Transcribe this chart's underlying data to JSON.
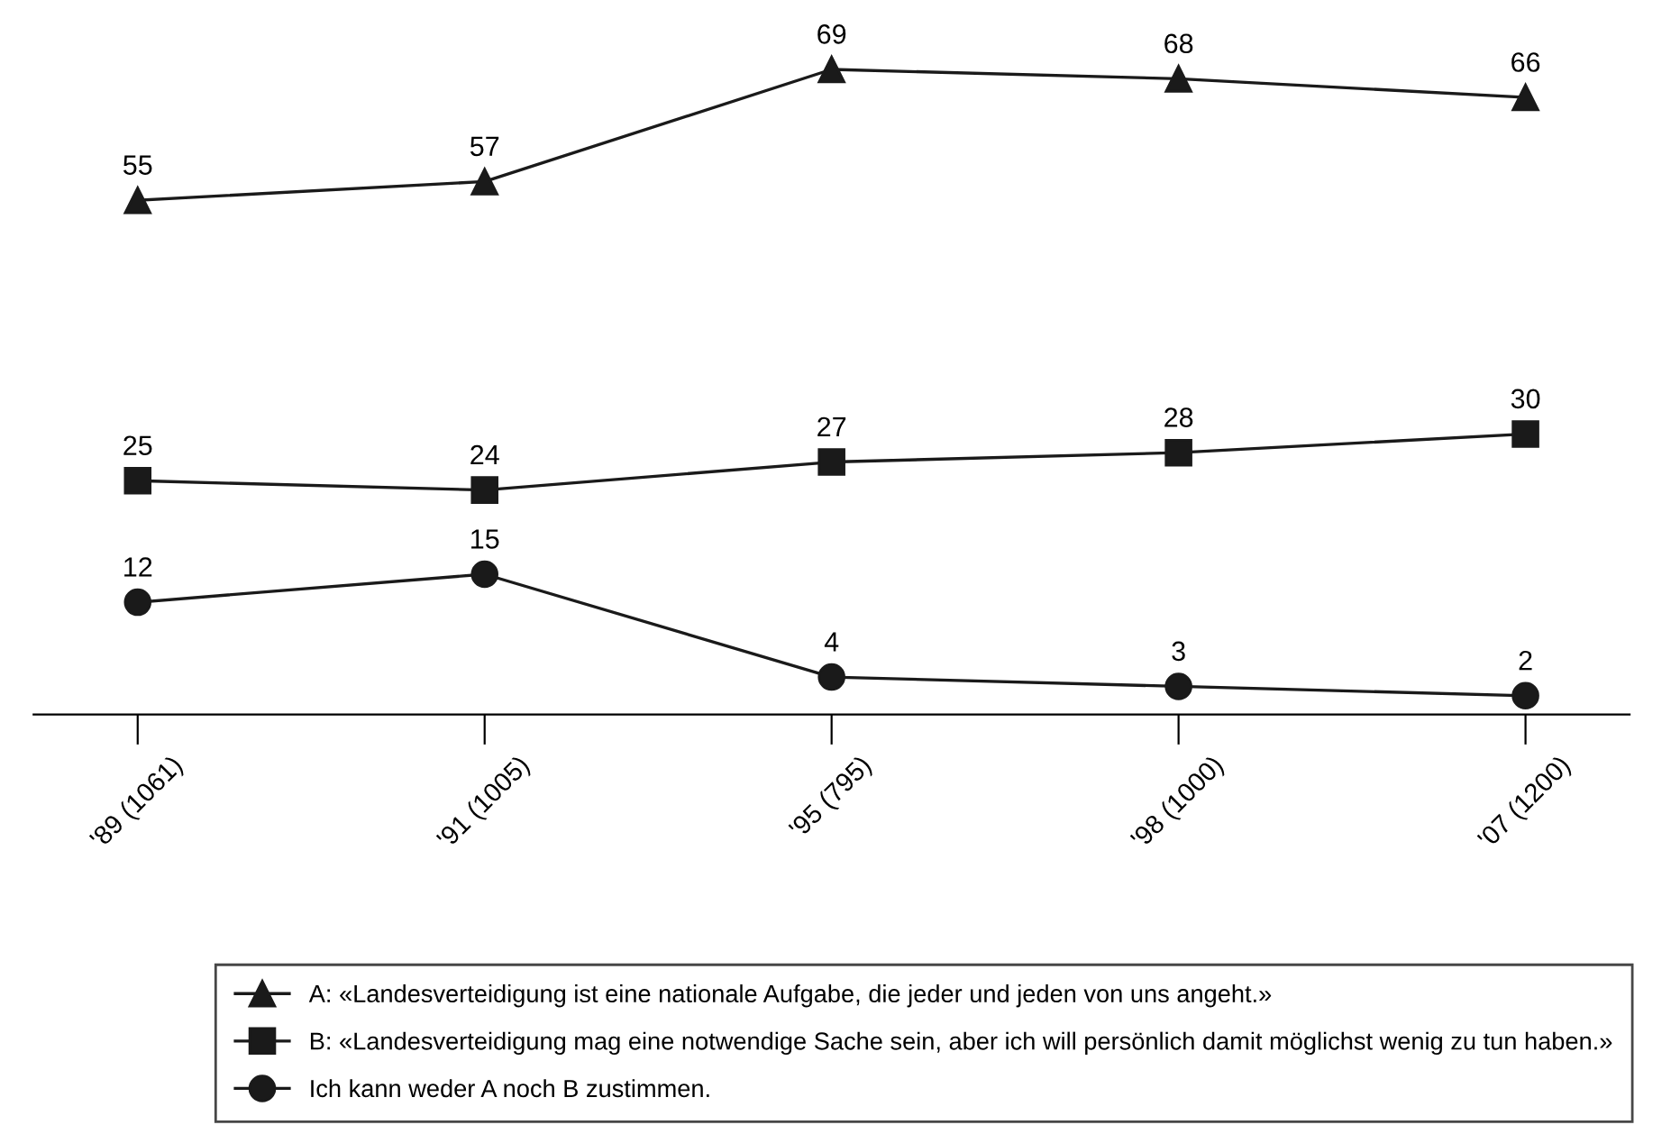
{
  "chart_data": {
    "type": "line",
    "categories": [
      "'89 (1061)",
      "'91 (1005)",
      "'95 (795)",
      "'98 (1000)",
      "'07 (1200)"
    ],
    "series": [
      {
        "name": "A: «Landesverteidigung ist eine nationale Aufgabe, die jeder und jeden von uns angeht.»",
        "color": "#1a1a1a",
        "marker": "triangle",
        "values": [
          55,
          57,
          69,
          68,
          66
        ]
      },
      {
        "name": "B: «Landesverteidigung mag eine notwendige Sache sein, aber ich will persönlich damit möglichst wenig zu tun haben.»",
        "color": "#1a1a1a",
        "marker": "square",
        "values": [
          25,
          24,
          27,
          28,
          30
        ]
      },
      {
        "name": "Ich kann weder A noch B zustimmen.",
        "color": "#1a1a1a",
        "marker": "circle",
        "values": [
          12,
          15,
          4,
          3,
          2
        ]
      }
    ],
    "data_labels": true,
    "grid": false,
    "legend": "bottom",
    "tick_labels": "x",
    "line_style": "solid"
  }
}
